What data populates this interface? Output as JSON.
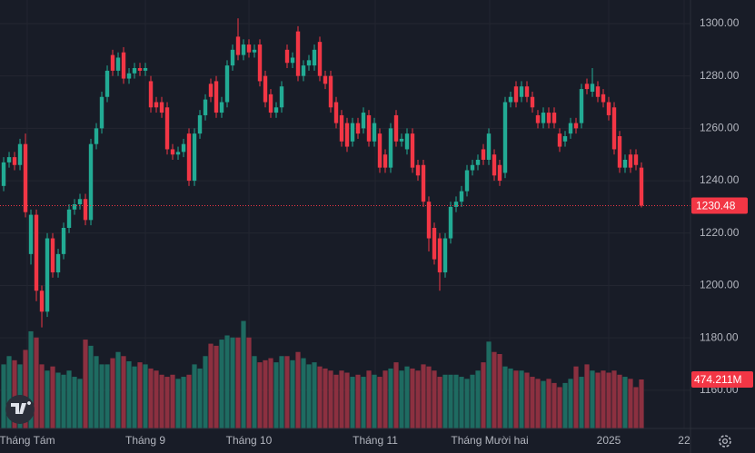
{
  "chart_data": {
    "type": "candlestick",
    "up_color": "#22ab94",
    "down_color": "#f23645",
    "up_volume_color": "#1e6b61",
    "down_volume_color": "#8c3040",
    "grid": true,
    "x": [
      0,
      1,
      2,
      3,
      4,
      5,
      6,
      7,
      8,
      9,
      10,
      11,
      12,
      13,
      14,
      15,
      16,
      17,
      18,
      19,
      20,
      21,
      22,
      23,
      24,
      25,
      26,
      27,
      28,
      29,
      30,
      31,
      32,
      33,
      34,
      35,
      36,
      37,
      38,
      39,
      40,
      41,
      42,
      43,
      44,
      45,
      46,
      47,
      48,
      49,
      50,
      51,
      52,
      53,
      54,
      55,
      56,
      57,
      58,
      59,
      60,
      61,
      62,
      63,
      64,
      65,
      66,
      67,
      68,
      69,
      70,
      71,
      72,
      73,
      74,
      75,
      76,
      77,
      78,
      79,
      80,
      81,
      82,
      83,
      84,
      85,
      86,
      87,
      88,
      89,
      90,
      91,
      92,
      93,
      94,
      95,
      96,
      97,
      98,
      99,
      100,
      101,
      102,
      103,
      104,
      105,
      106,
      107,
      108,
      109,
      110,
      111,
      112,
      113,
      114,
      115,
      116,
      117
    ],
    "xlim": [
      -0.67,
      126
    ],
    "xticks": [
      {
        "value": 4.33,
        "label": "Tháng Tám"
      },
      {
        "value": 26,
        "label": "Tháng 9"
      },
      {
        "value": 45,
        "label": "Tháng 10"
      },
      {
        "value": 68.17,
        "label": "Tháng 11"
      },
      {
        "value": 89.17,
        "label": "Tháng Mười hai"
      },
      {
        "value": 111,
        "label": "2025"
      },
      {
        "value": 124.83,
        "label": "22"
      }
    ],
    "ylim": [
      1145.4,
      1309
    ],
    "yticks": [
      {
        "value": 1160,
        "label": "1160.00"
      },
      {
        "value": 1180,
        "label": "1180.00"
      },
      {
        "value": 1200,
        "label": "1200.00"
      },
      {
        "value": 1220,
        "label": "1220.00"
      },
      {
        "value": 1240,
        "label": "1240.00"
      },
      {
        "value": 1260,
        "label": "1260.00"
      },
      {
        "value": 1280,
        "label": "1280.00"
      },
      {
        "value": 1300,
        "label": "1300.00"
      }
    ],
    "open": [
      1238,
      1247,
      1249,
      1246,
      1254,
      1212,
      1227,
      1198,
      1190,
      1218,
      1205,
      1212,
      1222,
      1229,
      1231,
      1233,
      1225,
      1254,
      1260,
      1272,
      1288,
      1282,
      1289,
      1279,
      1281,
      1283,
      1282,
      1278,
      1270,
      1270,
      1268,
      1252,
      1250,
      1251,
      1258,
      1240,
      1258,
      1265,
      1277,
      1278,
      1266,
      1270,
      1284,
      1295,
      1288,
      1292,
      1289,
      1292,
      1280,
      1273,
      1266,
      1268,
      1290,
      1285,
      1297,
      1280,
      1284,
      1284,
      1293,
      1280,
      1280,
      1270,
      1265,
      1262,
      1255,
      1262,
      1260,
      1265,
      1255,
      1258,
      1250,
      1245,
      1265,
      1255,
      1252,
      1258,
      1246,
      1246,
      1232,
      1222,
      1218,
      1205,
      1218,
      1230,
      1232,
      1236,
      1244,
      1246,
      1252,
      1248,
      1250,
      1246,
      1243,
      1270,
      1276,
      1272,
      1276,
      1272,
      1265,
      1262,
      1266,
      1266,
      1258,
      1255,
      1258,
      1262,
      1262,
      1277,
      1274,
      1276,
      1273,
      1270,
      1268,
      1257,
      1245,
      1250,
      1250,
      1245
    ],
    "high": [
      1249,
      1251,
      1251,
      1256,
      1258,
      1229,
      1229,
      1200,
      1220,
      1220,
      1214,
      1224,
      1231,
      1233,
      1235,
      1235,
      1256,
      1262,
      1274,
      1284,
      1290,
      1289,
      1291,
      1283,
      1285,
      1285,
      1285,
      1280,
      1272,
      1272,
      1270,
      1254,
      1253,
      1256,
      1260,
      1260,
      1267,
      1273,
      1279,
      1280,
      1272,
      1286,
      1292,
      1302,
      1294,
      1294,
      1292,
      1294,
      1282,
      1275,
      1270,
      1278,
      1292,
      1289,
      1299,
      1286,
      1288,
      1292,
      1295,
      1282,
      1282,
      1272,
      1267,
      1264,
      1264,
      1264,
      1268,
      1267,
      1264,
      1260,
      1252,
      1262,
      1267,
      1258,
      1260,
      1260,
      1248,
      1248,
      1234,
      1224,
      1220,
      1220,
      1232,
      1234,
      1238,
      1246,
      1248,
      1250,
      1254,
      1260,
      1252,
      1248,
      1272,
      1274,
      1278,
      1278,
      1278,
      1274,
      1267,
      1268,
      1268,
      1268,
      1260,
      1259,
      1264,
      1264,
      1277,
      1279,
      1283,
      1278,
      1275,
      1272,
      1270,
      1259,
      1250,
      1252,
      1252,
      1247
    ],
    "low": [
      1236,
      1245,
      1244,
      1244,
      1226,
      1208,
      1194,
      1184,
      1188,
      1203,
      1203,
      1210,
      1220,
      1227,
      1229,
      1223,
      1223,
      1252,
      1258,
      1270,
      1280,
      1280,
      1277,
      1277,
      1279,
      1280,
      1280,
      1266,
      1266,
      1264,
      1250,
      1248,
      1248,
      1249,
      1238,
      1238,
      1256,
      1263,
      1270,
      1264,
      1264,
      1268,
      1282,
      1286,
      1286,
      1287,
      1287,
      1276,
      1268,
      1264,
      1264,
      1266,
      1283,
      1283,
      1278,
      1278,
      1282,
      1282,
      1278,
      1275,
      1266,
      1260,
      1253,
      1251,
      1253,
      1256,
      1258,
      1253,
      1253,
      1243,
      1243,
      1243,
      1253,
      1253,
      1250,
      1243,
      1240,
      1230,
      1213,
      1208,
      1198,
      1203,
      1216,
      1228,
      1230,
      1234,
      1242,
      1244,
      1246,
      1246,
      1240,
      1238,
      1241,
      1268,
      1268,
      1270,
      1270,
      1266,
      1260,
      1260,
      1260,
      1260,
      1251,
      1253,
      1256,
      1258,
      1260,
      1273,
      1272,
      1270,
      1268,
      1263,
      1250,
      1243,
      1243,
      1243,
      1244,
      1229.8
    ],
    "close": [
      1247,
      1249,
      1246,
      1254,
      1228,
      1227,
      1198,
      1190,
      1218,
      1205,
      1212,
      1222,
      1229,
      1231,
      1233,
      1225,
      1254,
      1260,
      1272,
      1282,
      1282,
      1287,
      1279,
      1281,
      1283,
      1282,
      1283,
      1268,
      1268,
      1266,
      1252,
      1250,
      1251,
      1254,
      1240,
      1258,
      1265,
      1271,
      1272,
      1266,
      1270,
      1284,
      1290,
      1288,
      1292,
      1289,
      1290,
      1278,
      1270,
      1266,
      1268,
      1276,
      1285,
      1287,
      1280,
      1284,
      1286,
      1290,
      1280,
      1277,
      1268,
      1262,
      1255,
      1253,
      1262,
      1258,
      1266,
      1255,
      1262,
      1245,
      1245,
      1260,
      1255,
      1256,
      1258,
      1245,
      1242,
      1232,
      1218,
      1210,
      1205,
      1218,
      1230,
      1232,
      1236,
      1244,
      1246,
      1248,
      1248,
      1258,
      1242,
      1240,
      1270,
      1272,
      1270,
      1276,
      1272,
      1268,
      1262,
      1266,
      1262,
      1262,
      1253,
      1257,
      1262,
      1260,
      1275,
      1275,
      1277,
      1272,
      1270,
      1265,
      1252,
      1245,
      1248,
      1245,
      1246,
      1230.48
    ],
    "volume": {
      "values": [
        620,
        700,
        660,
        620,
        760,
        940,
        880,
        620,
        560,
        600,
        540,
        520,
        560,
        500,
        480,
        860,
        800,
        700,
        620,
        620,
        680,
        740,
        700,
        650,
        600,
        640,
        620,
        580,
        560,
        520,
        500,
        520,
        480,
        500,
        520,
        620,
        580,
        700,
        820,
        800,
        860,
        900,
        880,
        880,
        1040,
        880,
        700,
        640,
        660,
        680,
        640,
        700,
        700,
        660,
        740,
        680,
        620,
        640,
        600,
        580,
        560,
        520,
        560,
        540,
        500,
        520,
        500,
        560,
        520,
        500,
        560,
        580,
        640,
        560,
        600,
        580,
        560,
        620,
        600,
        560,
        500,
        520,
        520,
        520,
        500,
        480,
        520,
        560,
        640,
        840,
        740,
        720,
        600,
        580,
        560,
        560,
        540,
        500,
        480,
        460,
        480,
        440,
        400,
        440,
        480,
        600,
        500,
        620,
        560,
        540,
        560,
        540,
        560,
        520,
        500,
        480,
        400,
        474.211
      ],
      "lim": [
        0,
        4144
      ],
      "last_value_label": "474.211M"
    }
  }
}
